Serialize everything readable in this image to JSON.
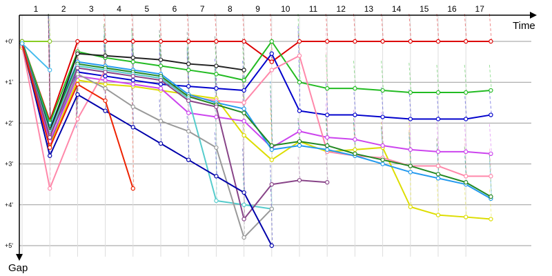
{
  "chart_data": {
    "type": "line",
    "xlabel": "Time",
    "ylabel": "Gap",
    "x_ticks": [
      "1",
      "2",
      "3",
      "4",
      "5",
      "6",
      "7",
      "8",
      "9",
      "10",
      "11",
      "12",
      "13",
      "14",
      "15",
      "16",
      "17"
    ],
    "y_ticks": [
      "+0'",
      "+1'",
      "+2'",
      "+3'",
      "+4'",
      "+5'"
    ],
    "xlim": [
      0.5,
      18.2
    ],
    "ylim": [
      0,
      5.4
    ],
    "y_inverted": true,
    "grid": true,
    "legend": "none",
    "series": [
      {
        "color": "#dd0000",
        "points": [
          [
            1,
            0
          ],
          [
            2,
            1.95
          ],
          [
            3,
            0
          ],
          [
            4,
            0
          ],
          [
            5,
            0
          ],
          [
            6,
            0
          ],
          [
            7,
            0
          ],
          [
            8,
            0
          ],
          [
            9,
            0
          ],
          [
            10,
            0.5
          ],
          [
            11,
            0
          ],
          [
            12,
            0
          ],
          [
            13,
            0
          ],
          [
            14,
            0
          ],
          [
            15,
            0
          ],
          [
            16,
            0
          ],
          [
            17,
            0
          ],
          [
            17.9,
            0
          ]
        ]
      },
      {
        "color": "#22bb22",
        "points": [
          [
            1,
            0
          ],
          [
            2,
            2.0
          ],
          [
            3,
            0.25
          ],
          [
            4,
            0.4
          ],
          [
            5,
            0.5
          ],
          [
            6,
            0.6
          ],
          [
            7,
            0.7
          ],
          [
            8,
            0.8
          ],
          [
            9,
            0.95
          ],
          [
            10,
            0
          ],
          [
            11,
            1.0
          ],
          [
            12,
            1.15
          ],
          [
            13,
            1.15
          ],
          [
            14,
            1.2
          ],
          [
            15,
            1.25
          ],
          [
            16,
            1.25
          ],
          [
            17,
            1.25
          ],
          [
            17.9,
            1.2
          ]
        ]
      },
      {
        "color": "#0000cc",
        "points": [
          [
            1,
            0
          ],
          [
            2,
            2.5
          ],
          [
            3,
            0.75
          ],
          [
            4,
            0.85
          ],
          [
            5,
            0.95
          ],
          [
            6,
            1.05
          ],
          [
            7,
            1.1
          ],
          [
            8,
            1.15
          ],
          [
            9,
            1.2
          ],
          [
            10,
            0.3
          ],
          [
            11,
            1.7
          ],
          [
            12,
            1.8
          ],
          [
            13,
            1.8
          ],
          [
            14,
            1.85
          ],
          [
            15,
            1.9
          ],
          [
            16,
            1.9
          ],
          [
            17,
            1.9
          ],
          [
            17.9,
            1.8
          ]
        ]
      },
      {
        "color": "#dddd00",
        "points": [
          [
            1,
            0.15
          ],
          [
            2,
            2.55
          ],
          [
            3,
            0.95
          ],
          [
            4,
            1.05
          ],
          [
            5,
            1.1
          ],
          [
            6,
            1.2
          ],
          [
            7,
            1.3
          ],
          [
            8,
            1.4
          ],
          [
            9,
            2.3
          ],
          [
            10,
            2.9
          ],
          [
            11,
            2.45
          ],
          [
            12,
            2.7
          ],
          [
            13,
            2.65
          ],
          [
            14,
            2.6
          ],
          [
            15,
            4.05
          ],
          [
            16,
            4.25
          ],
          [
            17,
            4.3
          ],
          [
            17.9,
            4.35
          ]
        ]
      },
      {
        "color": "#cc44ee",
        "points": [
          [
            1,
            0.1
          ],
          [
            2,
            2.45
          ],
          [
            3,
            0.85
          ],
          [
            4,
            0.95
          ],
          [
            5,
            1.05
          ],
          [
            6,
            1.15
          ],
          [
            7,
            1.75
          ],
          [
            8,
            1.85
          ],
          [
            9,
            1.95
          ],
          [
            10,
            2.6
          ],
          [
            11,
            2.2
          ],
          [
            12,
            2.35
          ],
          [
            13,
            2.4
          ],
          [
            14,
            2.55
          ],
          [
            15,
            2.65
          ],
          [
            16,
            2.7
          ],
          [
            17,
            2.7
          ],
          [
            17.9,
            2.75
          ]
        ]
      },
      {
        "color": "#ff88aa",
        "points": [
          [
            1,
            0.1
          ],
          [
            2,
            3.6
          ],
          [
            3,
            1.9
          ],
          [
            4,
            0.7
          ],
          [
            5,
            0.8
          ],
          [
            6,
            0.9
          ],
          [
            7,
            1.35
          ],
          [
            8,
            1.45
          ],
          [
            9,
            1.5
          ],
          [
            10,
            0.7
          ],
          [
            11,
            0.35
          ],
          [
            12,
            2.7
          ],
          [
            13,
            2.8
          ],
          [
            14,
            2.85
          ],
          [
            15,
            3.05
          ],
          [
            16,
            3.05
          ],
          [
            17,
            3.3
          ],
          [
            17.9,
            3.3
          ]
        ]
      },
      {
        "color": "#2299ee",
        "points": [
          [
            1,
            0.05
          ],
          [
            2,
            2.1
          ],
          [
            3,
            0.5
          ],
          [
            4,
            0.6
          ],
          [
            5,
            0.7
          ],
          [
            6,
            0.8
          ],
          [
            7,
            1.3
          ],
          [
            8,
            1.5
          ],
          [
            9,
            1.65
          ],
          [
            10,
            2.65
          ],
          [
            11,
            2.55
          ],
          [
            12,
            2.65
          ],
          [
            13,
            2.8
          ],
          [
            14,
            3.0
          ],
          [
            15,
            3.2
          ],
          [
            16,
            3.35
          ],
          [
            17,
            3.5
          ],
          [
            17.9,
            3.85
          ]
        ]
      },
      {
        "color": "#228822",
        "points": [
          [
            1,
            0.05
          ],
          [
            2,
            2.15
          ],
          [
            3,
            0.55
          ],
          [
            4,
            0.65
          ],
          [
            5,
            0.75
          ],
          [
            6,
            0.85
          ],
          [
            7,
            1.35
          ],
          [
            8,
            1.55
          ],
          [
            9,
            1.75
          ],
          [
            10,
            2.55
          ],
          [
            11,
            2.45
          ],
          [
            12,
            2.55
          ],
          [
            13,
            2.75
          ],
          [
            14,
            2.9
          ],
          [
            15,
            3.05
          ],
          [
            16,
            3.25
          ],
          [
            17,
            3.45
          ],
          [
            17.9,
            3.8
          ]
        ]
      },
      {
        "color": "#222222",
        "points": [
          [
            1,
            0.05
          ],
          [
            2,
            2.2
          ],
          [
            3,
            0.3
          ],
          [
            4,
            0.35
          ],
          [
            5,
            0.4
          ],
          [
            6,
            0.45
          ],
          [
            7,
            0.55
          ],
          [
            8,
            0.6
          ],
          [
            9,
            0.7
          ]
        ]
      },
      {
        "color": "#55cccc",
        "points": [
          [
            1,
            0.05
          ],
          [
            2,
            2.25
          ],
          [
            3,
            0.6
          ],
          [
            4,
            0.7
          ],
          [
            5,
            0.8
          ],
          [
            6,
            0.9
          ],
          [
            7,
            1.4
          ],
          [
            8,
            3.9
          ],
          [
            9,
            4.0
          ],
          [
            10,
            4.1
          ]
        ]
      },
      {
        "color": "#999999",
        "points": [
          [
            1,
            0.05
          ],
          [
            2,
            2.3
          ],
          [
            3,
            0.8
          ],
          [
            4,
            1.15
          ],
          [
            5,
            1.6
          ],
          [
            6,
            1.95
          ],
          [
            7,
            2.2
          ],
          [
            8,
            2.6
          ],
          [
            9,
            4.8
          ],
          [
            10,
            4.1
          ]
        ]
      },
      {
        "color": "#884488",
        "points": [
          [
            1,
            0.05
          ],
          [
            2,
            2.35
          ],
          [
            3,
            0.65
          ],
          [
            4,
            0.75
          ],
          [
            5,
            0.85
          ],
          [
            6,
            0.95
          ],
          [
            7,
            1.45
          ],
          [
            8,
            1.6
          ],
          [
            9,
            4.35
          ],
          [
            10,
            3.5
          ],
          [
            11,
            3.4
          ],
          [
            12,
            3.45
          ]
        ]
      },
      {
        "color": "#0000aa",
        "points": [
          [
            1,
            0.05
          ],
          [
            2,
            2.8
          ],
          [
            3,
            1.3
          ],
          [
            4,
            1.7
          ],
          [
            5,
            2.1
          ],
          [
            6,
            2.5
          ],
          [
            7,
            2.9
          ],
          [
            8,
            3.3
          ],
          [
            9,
            3.7
          ],
          [
            10,
            5.0
          ]
        ]
      },
      {
        "color": "#ee2200",
        "points": [
          [
            1,
            0.05
          ],
          [
            2,
            2.6
          ],
          [
            3,
            1.05
          ],
          [
            4,
            1.45
          ],
          [
            5,
            3.6
          ]
        ]
      },
      {
        "color": "#88cc22",
        "points": [
          [
            1,
            0
          ],
          [
            2,
            0
          ]
        ]
      },
      {
        "color": "#44bbee",
        "points": [
          [
            1,
            0.05
          ],
          [
            2,
            0.7
          ]
        ]
      }
    ]
  }
}
